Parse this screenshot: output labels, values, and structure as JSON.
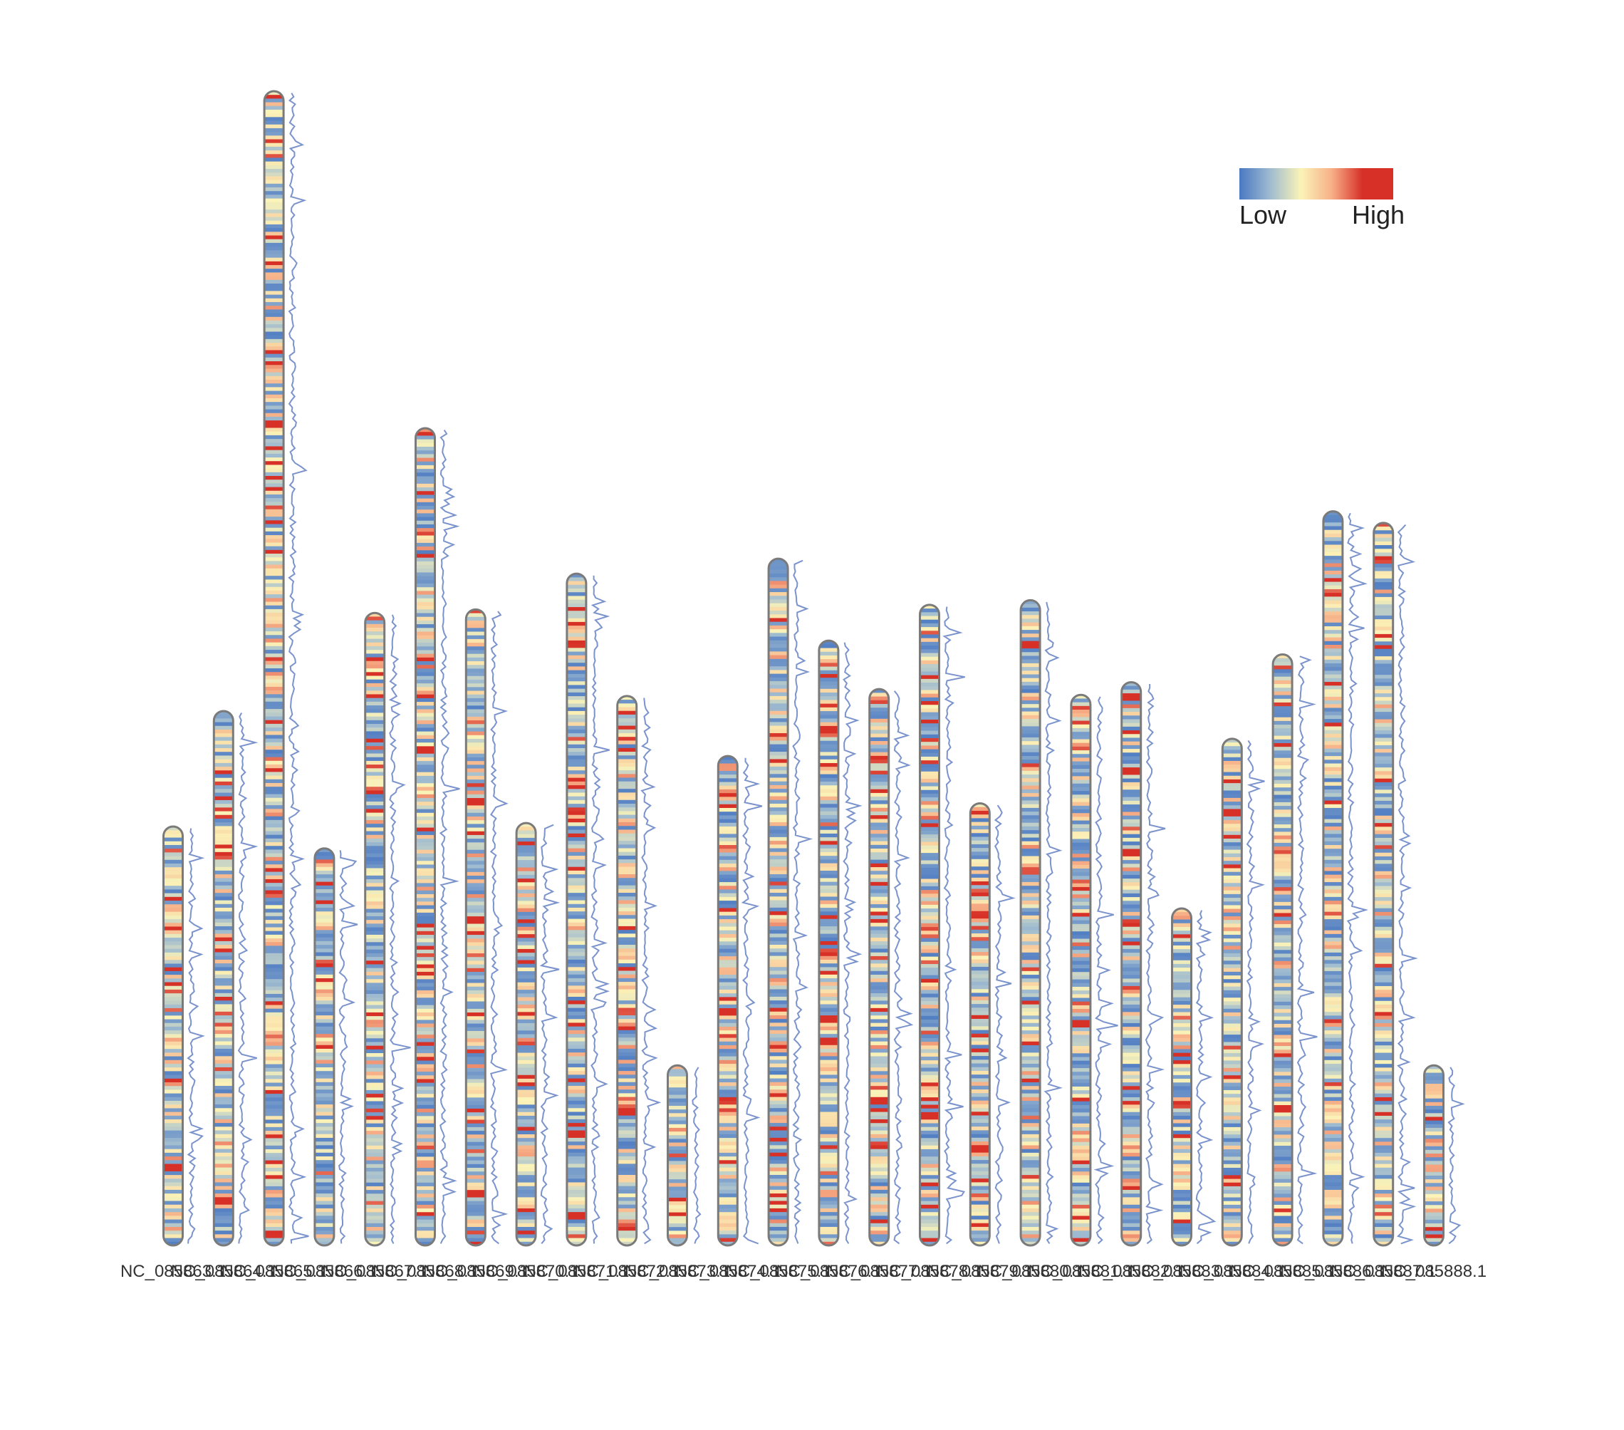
{
  "chart_data": {
    "type": "heatmap",
    "subtype": "chromosome density ideogram with density line track",
    "title": "",
    "xlabel": "",
    "ylabel": "",
    "legend": {
      "low_label": "Low",
      "high_label": "High",
      "placement": "top-right",
      "colors": [
        "#4a78c2",
        "#9fbbd0",
        "#fbf3b8",
        "#f7b088",
        "#d73027",
        "#d73027"
      ]
    },
    "colors": {
      "outline": "#7a7a7a",
      "density_line": "#7b93cc"
    },
    "length_unit": "relative (0–1, longest chromosome = 1)",
    "chromosomes": [
      {
        "label": "NC_085863.1",
        "length": 0.363
      },
      {
        "label": "NC_085864.1",
        "length": 0.463
      },
      {
        "label": "NC_085865.1",
        "length": 1.0
      },
      {
        "label": "NC_085866.1",
        "length": 0.344
      },
      {
        "label": "NC_085867.1",
        "length": 0.548
      },
      {
        "label": "NC_085868.1",
        "length": 0.708
      },
      {
        "label": "NC_085869.1",
        "length": 0.551
      },
      {
        "label": "NC_085870.1",
        "length": 0.366
      },
      {
        "label": "NC_085871.1",
        "length": 0.582
      },
      {
        "label": "NC_085872.1",
        "length": 0.476
      },
      {
        "label": "NC_085873.1",
        "length": 0.156
      },
      {
        "label": "NC_085874.1",
        "length": 0.424
      },
      {
        "label": "NC_085875.1",
        "length": 0.595
      },
      {
        "label": "NC_085876.1",
        "length": 0.524
      },
      {
        "label": "NC_085877.1",
        "length": 0.482
      },
      {
        "label": "NC_085878.1",
        "length": 0.555
      },
      {
        "label": "NC_085879.1",
        "length": 0.383
      },
      {
        "label": "NC_085880.1",
        "length": 0.559
      },
      {
        "label": "NC_085881.1",
        "length": 0.477
      },
      {
        "label": "NC_085882.1",
        "length": 0.488
      },
      {
        "label": "NC_085883.1",
        "length": 0.292
      },
      {
        "label": "NC_085884.1",
        "length": 0.439
      },
      {
        "label": "NC_085885.1",
        "length": 0.512
      },
      {
        "label": "NC_085886.1",
        "length": 0.636
      },
      {
        "label": "NC_085887.1",
        "length": 0.626
      },
      {
        "label": "NC_085888.1",
        "length": 0.156
      }
    ]
  }
}
